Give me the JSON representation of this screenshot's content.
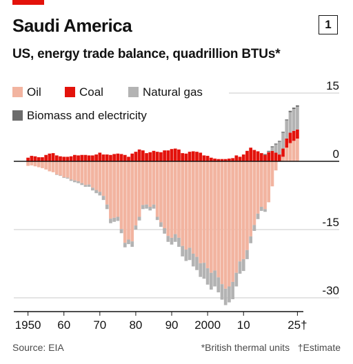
{
  "header": {
    "title": "Saudi America",
    "chart_number": "1",
    "subtitle": "US, energy trade balance, quadrillion BTUs*"
  },
  "footer": {
    "source": "Source: EIA",
    "note_1": "*British thermal units",
    "note_2": "†Estimate"
  },
  "colors": {
    "oil": "#f2b4a0",
    "coal": "#e3120b",
    "natural_gas": "#b3b3b3",
    "biomass_electricity": "#6b6b6b",
    "accent": "#e3120b"
  },
  "chart_data": {
    "type": "bar",
    "stacked": true,
    "title": "Saudi America",
    "subtitle": "US, energy trade balance, quadrillion BTUs*",
    "ylim": [
      -30,
      15
    ],
    "y_ticks": [
      15,
      0,
      -15,
      -30
    ],
    "y_tick_labels": [
      "15",
      "0",
      "-15",
      "-30"
    ],
    "x_tick_labels": [
      {
        "year": 1950,
        "label": "1950"
      },
      {
        "year": 1960,
        "label": "60"
      },
      {
        "year": 1970,
        "label": "70"
      },
      {
        "year": 1980,
        "label": "80"
      },
      {
        "year": 1990,
        "label": "90"
      },
      {
        "year": 2000,
        "label": "2000"
      },
      {
        "year": 2010,
        "label": "10"
      },
      {
        "year": 2025,
        "label": "25†"
      }
    ],
    "legend_position": "top-left",
    "grid": true,
    "x": [
      1950,
      1951,
      1952,
      1953,
      1954,
      1955,
      1956,
      1957,
      1958,
      1959,
      1960,
      1961,
      1962,
      1963,
      1964,
      1965,
      1966,
      1967,
      1968,
      1969,
      1970,
      1971,
      1972,
      1973,
      1974,
      1975,
      1976,
      1977,
      1978,
      1979,
      1980,
      1981,
      1982,
      1983,
      1984,
      1985,
      1986,
      1987,
      1988,
      1989,
      1990,
      1991,
      1992,
      1993,
      1994,
      1995,
      1996,
      1997,
      1998,
      1999,
      2000,
      2001,
      2002,
      2003,
      2004,
      2005,
      2006,
      2007,
      2008,
      2009,
      2010,
      2011,
      2012,
      2013,
      2014,
      2015,
      2016,
      2017,
      2018,
      2019,
      2020,
      2021,
      2022,
      2023,
      2024,
      2025
    ],
    "series": [
      {
        "name": "Oil",
        "values": [
          -1.0,
          -0.9,
          -1.1,
          -1.3,
          -1.5,
          -1.8,
          -2.2,
          -2.4,
          -2.9,
          -3.1,
          -3.5,
          -3.6,
          -4.0,
          -4.2,
          -4.4,
          -4.8,
          -5.2,
          -5.1,
          -5.8,
          -6.3,
          -6.7,
          -7.6,
          -9.5,
          -12.6,
          -12.4,
          -12.2,
          -14.9,
          -17.9,
          -17.2,
          -17.6,
          -14.1,
          -12.2,
          -9.6,
          -9.5,
          -10.0,
          -9.5,
          -12.2,
          -13.4,
          -14.7,
          -16.4,
          -16.8,
          -16.0,
          -16.8,
          -18.6,
          -19.4,
          -19.0,
          -20.3,
          -21.0,
          -22.4,
          -22.3,
          -23.5,
          -24.5,
          -24.0,
          -25.5,
          -27.0,
          -28.0,
          -27.5,
          -26.5,
          -24.5,
          -22.0,
          -21.5,
          -19.5,
          -16.5,
          -14.0,
          -11.5,
          -10.0,
          -10.5,
          -9.0,
          -5.5,
          -2.0,
          0.0,
          1.0,
          3.0,
          4.0,
          4.5,
          5.0
        ]
      },
      {
        "name": "Coal",
        "values": [
          0.8,
          1.2,
          1.1,
          0.9,
          0.9,
          1.4,
          1.7,
          1.8,
          1.3,
          1.1,
          1.0,
          1.0,
          1.1,
          1.4,
          1.3,
          1.4,
          1.4,
          1.3,
          1.3,
          1.5,
          1.9,
          1.5,
          1.5,
          1.4,
          1.6,
          1.7,
          1.6,
          1.4,
          1.0,
          1.7,
          2.1,
          2.6,
          2.4,
          1.8,
          2.0,
          2.3,
          2.1,
          2.0,
          2.4,
          2.4,
          2.7,
          2.8,
          2.6,
          1.8,
          1.7,
          2.1,
          2.2,
          2.1,
          1.9,
          1.3,
          1.2,
          0.8,
          0.6,
          0.5,
          0.5,
          0.5,
          0.6,
          0.7,
          1.3,
          1.0,
          1.5,
          2.3,
          3.0,
          2.5,
          2.2,
          1.8,
          1.4,
          2.0,
          2.3,
          1.9,
          1.5,
          1.8,
          2.0,
          2.3,
          2.2,
          2.0
        ]
      },
      {
        "name": "Natural gas",
        "values": [
          0,
          0,
          0,
          0,
          0,
          0,
          0,
          0,
          -0.1,
          -0.1,
          -0.15,
          -0.2,
          -0.3,
          -0.4,
          -0.4,
          -0.4,
          -0.4,
          -0.5,
          -0.6,
          -0.7,
          -0.8,
          -0.9,
          -1.0,
          -1.0,
          -0.9,
          -0.9,
          -0.9,
          -1.0,
          -1.0,
          -1.2,
          -0.9,
          -0.8,
          -0.9,
          -0.9,
          -0.8,
          -0.9,
          -0.7,
          -1.0,
          -1.2,
          -1.3,
          -1.5,
          -1.7,
          -2.0,
          -2.3,
          -2.5,
          -2.7,
          -2.8,
          -2.9,
          -3.0,
          -3.5,
          -3.6,
          -3.7,
          -3.5,
          -3.3,
          -3.4,
          -3.6,
          -3.5,
          -3.8,
          -3.0,
          -2.7,
          -2.6,
          -2.0,
          -1.5,
          -1.3,
          -1.2,
          -0.9,
          -0.6,
          0.1,
          0.8,
          1.8,
          2.8,
          3.5,
          4.0,
          4.5,
          4.8,
          5.0
        ]
      },
      {
        "name": "Biomass and electricity",
        "values": [
          0,
          0,
          0,
          0,
          0,
          0,
          0,
          0,
          0,
          0,
          0,
          0,
          0,
          0,
          0,
          0,
          0,
          0,
          0,
          0,
          0,
          0,
          0,
          0,
          0,
          0,
          0,
          0,
          0,
          0,
          0,
          0,
          0,
          0,
          0,
          0,
          0,
          0,
          0,
          0,
          0,
          0,
          0,
          0,
          0,
          0,
          0,
          0,
          0,
          0,
          0,
          0,
          0,
          0,
          0,
          0,
          0,
          0,
          0,
          0,
          0,
          0,
          0,
          0,
          0,
          0,
          0.2,
          0.2,
          0.2,
          0.2,
          0.2,
          0.2,
          0.2,
          0.3,
          0.3,
          0.3
        ]
      }
    ]
  }
}
